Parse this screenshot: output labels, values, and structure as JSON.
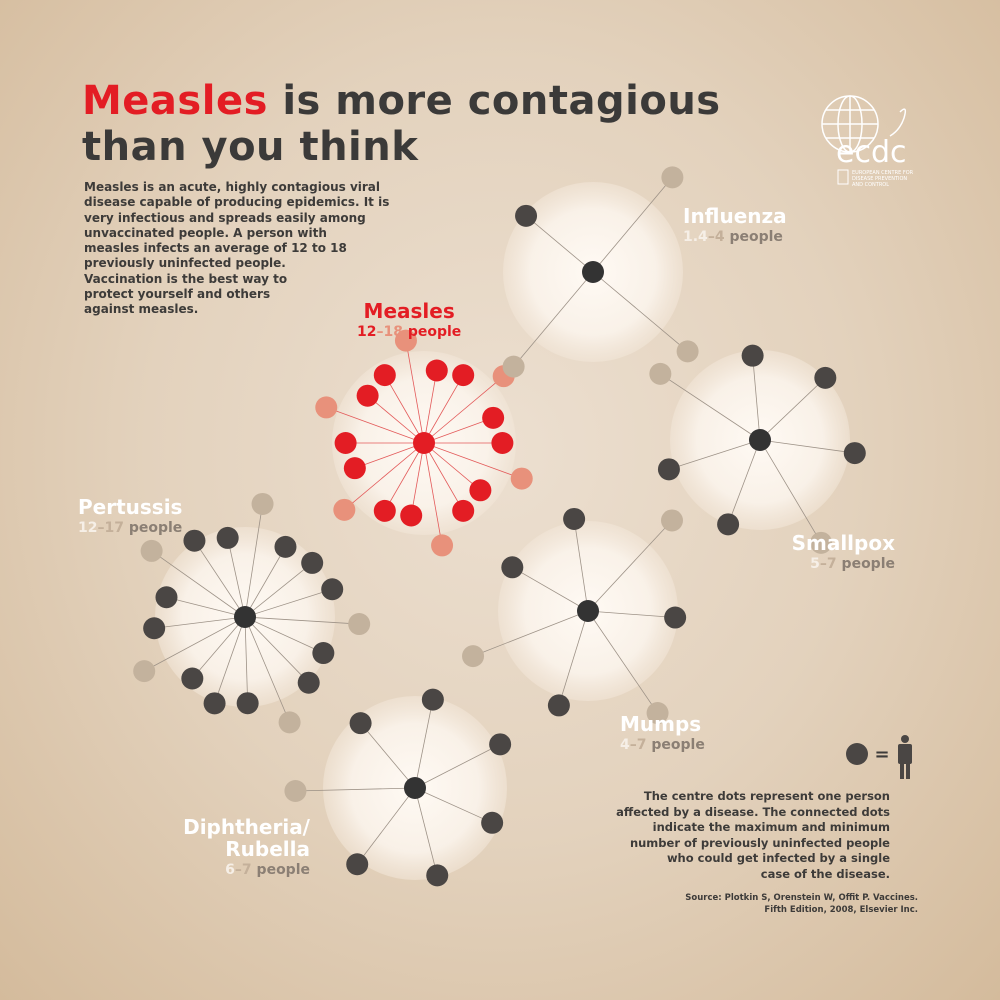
{
  "header": {
    "title_highlight": "Measles",
    "title_rest": "is more contagious",
    "title_line2": "than you think"
  },
  "description": [
    "Measles is an acute, highly contagious viral",
    "disease capable of producing epidemics. It is",
    "very infectious and spreads easily among",
    "unvaccinated people. A person with",
    "measles infects an average of 12 to 18",
    "previously uninfected people.",
    "Vaccination is the best way to",
    "protect yourself and others",
    "against measles."
  ],
  "logo": {
    "name": "ecdc",
    "subtitle": [
      "EUROPEAN CENTRE FOR",
      "DISEASE PREVENTION",
      "AND CONTROL"
    ]
  },
  "range_separator": "–",
  "unit": "people",
  "diseases": [
    {
      "name_lines": [
        "Measles"
      ],
      "min": 12,
      "max": 18
    },
    {
      "name_lines": [
        "Influenza"
      ],
      "min": 1.4,
      "max": 4
    },
    {
      "name_lines": [
        "Smallpox"
      ],
      "min": 5,
      "max": 7
    },
    {
      "name_lines": [
        "Mumps"
      ],
      "min": 4,
      "max": 7
    },
    {
      "name_lines": [
        "Pertussis"
      ],
      "min": 12,
      "max": 17
    },
    {
      "name_lines": [
        "Diphtheria/",
        "Rubella"
      ],
      "min": 6,
      "max": 7
    }
  ],
  "legend": {
    "equals": "=",
    "note": [
      "The centre dots represent one person",
      "affected by a disease. The connected dots",
      "indicate the maximum and minimum",
      "number of previously uninfected people",
      "who could get infected by a single",
      "case of the disease."
    ],
    "source": [
      "Source: Plotkin S, Orenstein W, Offit P. Vaccines.",
      "Fifth Edition, 2008, Elsevier Inc."
    ]
  }
}
